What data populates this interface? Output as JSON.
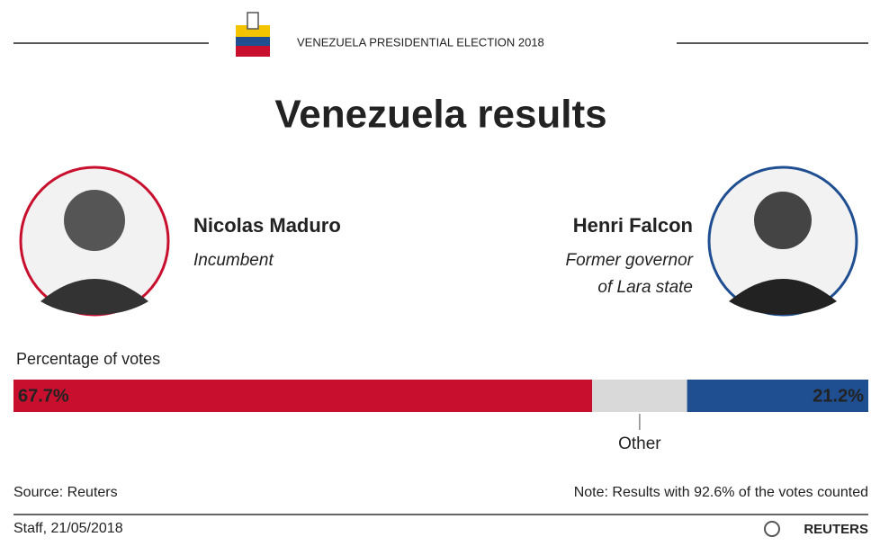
{
  "header": {
    "kicker": "VENEZUELA PRESIDENTIAL ELECTION 2018",
    "title": "Venezuela results"
  },
  "candidates": [
    {
      "role": [
        "Incumbent"
      ]
    },
    {
      "role": [
        "Former governor",
        "of Lara state"
      ]
    }
  ],
  "chart_data": {
    "type": "stacked_bar",
    "title": "Percentage of votes",
    "xlim": [
      0,
      100
    ],
    "series": [
      {
        "name": "Nicolas Maduro",
        "color": "#c8102e",
        "values": [
          67.7
        ],
        "value_labels": [
          "67.7%"
        ]
      },
      {
        "name": "Other",
        "color": "#d9d9d9",
        "values": [
          11.1
        ]
      },
      {
        "name": "Henri Falcon",
        "color": "#1f4e91",
        "values": [
          21.2
        ],
        "value_labels": [
          "21.2%"
        ]
      }
    ]
  },
  "footer": {
    "source": "Source: Reuters",
    "note": "Note: Results with 92.6% of the votes counted",
    "credit": "Staff, 21/05/2018",
    "logo": "REUTERS"
  }
}
